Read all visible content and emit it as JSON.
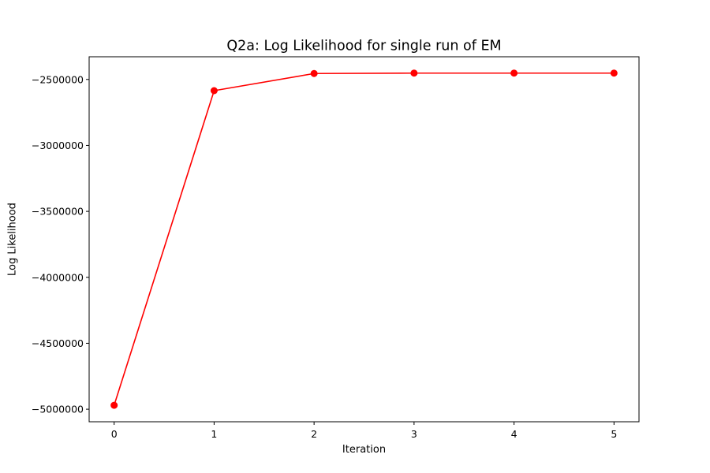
{
  "chart_data": {
    "type": "line",
    "title": "Q2a: Log Likelihood for single run of EM",
    "xlabel": "Iteration",
    "ylabel": "Log Likelihood",
    "x": [
      0,
      1,
      2,
      3,
      4,
      5
    ],
    "series": [
      {
        "values": [
          -4970000,
          -2585000,
          -2455000,
          -2452000,
          -2452000,
          -2452000
        ],
        "color": "#ff0000",
        "marker": "circle"
      }
    ],
    "xlim": [
      -0.25,
      5.25
    ],
    "ylim": [
      -5095000,
      -2328000
    ],
    "xticks": [
      0,
      1,
      2,
      3,
      4,
      5
    ],
    "xtick_labels": [
      "0",
      "1",
      "2",
      "3",
      "4",
      "5"
    ],
    "yticks": [
      -5000000,
      -4500000,
      -4000000,
      -3500000,
      -3000000,
      -2500000
    ],
    "ytick_labels": [
      "−5000000",
      "−4500000",
      "−4000000",
      "−3500000",
      "−3000000",
      "−2500000"
    ],
    "grid": false,
    "legend": "none"
  }
}
